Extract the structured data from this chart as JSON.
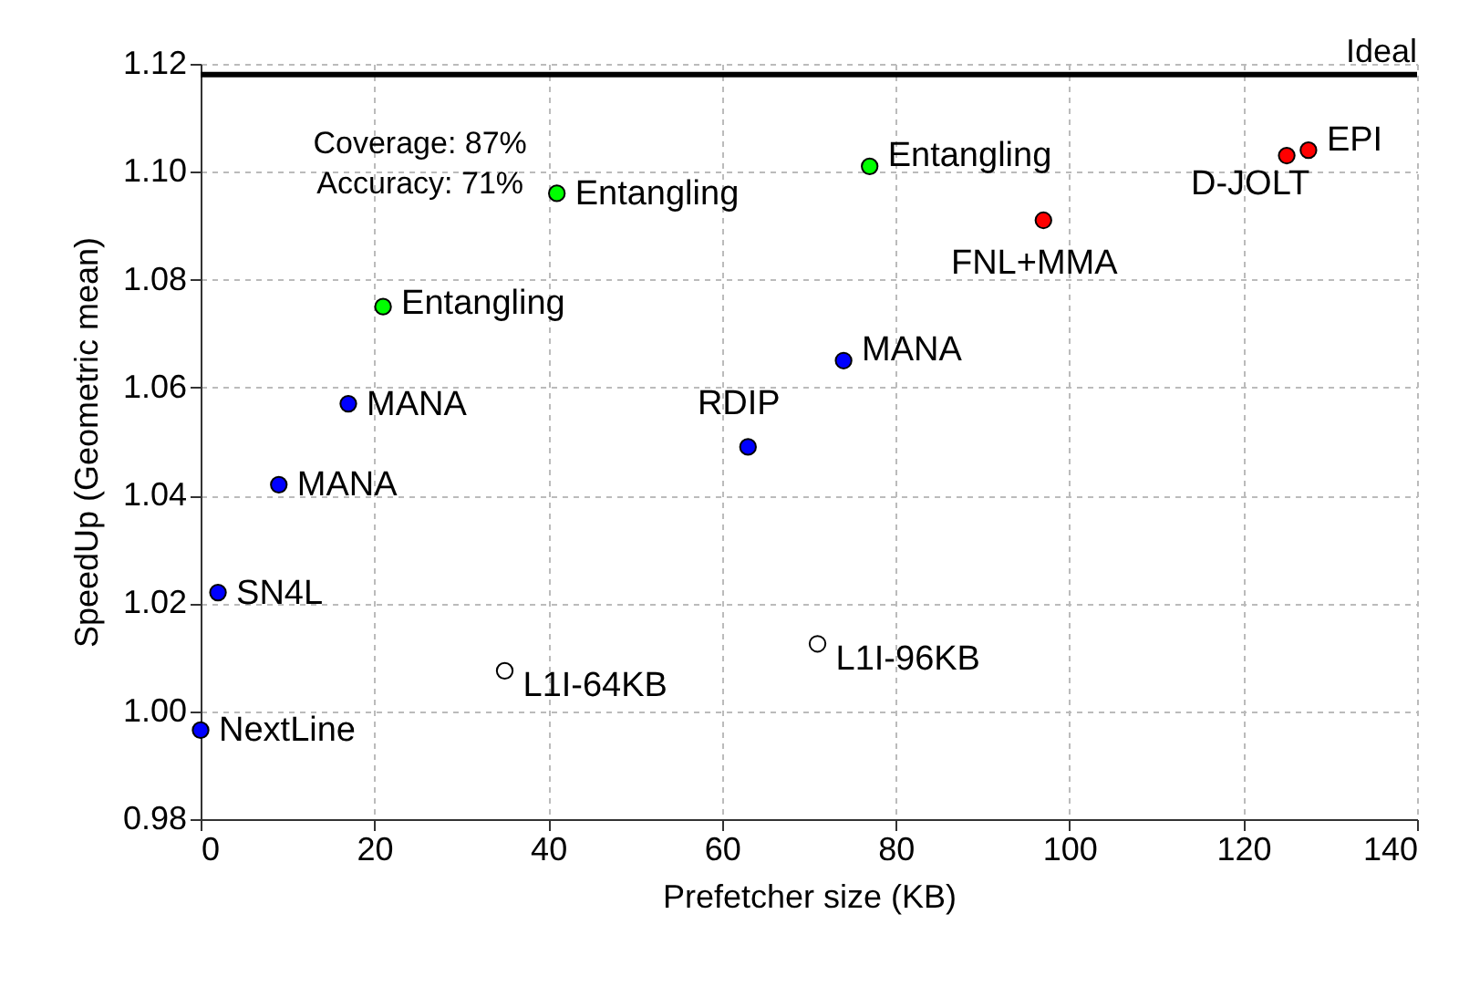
{
  "chart_data": {
    "type": "scatter",
    "xlabel": "Prefetcher size (KB)",
    "ylabel": "SpeedUp (Geometric mean)",
    "xlim": [
      0,
      140
    ],
    "xticks": [
      0,
      20,
      40,
      60,
      80,
      100,
      120,
      140
    ],
    "ylim": [
      0.98,
      1.12
    ],
    "yticks": [
      {
        "value": 0.98,
        "label": "0.98"
      },
      {
        "value": 1.0,
        "label": "1.00"
      },
      {
        "value": 1.02,
        "label": "1.02"
      },
      {
        "value": 1.04,
        "label": "1.04"
      },
      {
        "value": 1.06,
        "label": "1.06"
      },
      {
        "value": 1.08,
        "label": "1.08"
      },
      {
        "value": 1.1,
        "label": "1.10"
      },
      {
        "value": 1.12,
        "label": "1.12"
      }
    ],
    "grid": true,
    "marker": "circle",
    "series": [
      {
        "color": "#0000ff",
        "x": [
          0,
          2,
          9,
          17,
          63,
          74
        ],
        "values": [
          0.9965,
          1.022,
          1.042,
          1.057,
          1.049,
          1.065
        ]
      },
      {
        "color": "#00ff00",
        "x": [
          21,
          41,
          77
        ],
        "values": [
          1.075,
          1.096,
          1.101
        ]
      },
      {
        "color": "#ff0000",
        "x": [
          97,
          125,
          127.5
        ],
        "values": [
          1.091,
          1.103,
          1.104
        ]
      },
      {
        "color": "#ffffff",
        "x": [
          35,
          71
        ],
        "values": [
          1.0075,
          1.0125
        ]
      }
    ],
    "ref_lines": [
      {
        "axis": "y",
        "value": 1.118,
        "label": "Ideal",
        "color": "#000000"
      }
    ],
    "annotations": [
      {
        "text": "NextLine",
        "x": 0,
        "y": 0.9965
      },
      {
        "text": "SN4L",
        "x": 2,
        "y": 1.022
      },
      {
        "text": "MANA",
        "x": 9,
        "y": 1.042
      },
      {
        "text": "MANA",
        "x": 17,
        "y": 1.057
      },
      {
        "text": "RDIP",
        "x": 63,
        "y": 1.049
      },
      {
        "text": "MANA",
        "x": 74,
        "y": 1.065
      },
      {
        "text": "Entangling",
        "x": 21,
        "y": 1.075
      },
      {
        "text": "Entangling",
        "x": 41,
        "y": 1.096
      },
      {
        "text": "Entangling",
        "x": 77,
        "y": 1.101
      },
      {
        "text": "FNL+MMA",
        "x": 97,
        "y": 1.091
      },
      {
        "text": "D-JOLT",
        "x": 125,
        "y": 1.103
      },
      {
        "text": "EPI",
        "x": 127.5,
        "y": 1.104
      },
      {
        "text": "L1I-64KB",
        "x": 35,
        "y": 1.0075
      },
      {
        "text": "L1I-96KB",
        "x": 71,
        "y": 1.0125
      },
      {
        "text": "Coverage:  87%\nAccuracy:  71%",
        "x": 41,
        "y": 1.096
      }
    ]
  }
}
